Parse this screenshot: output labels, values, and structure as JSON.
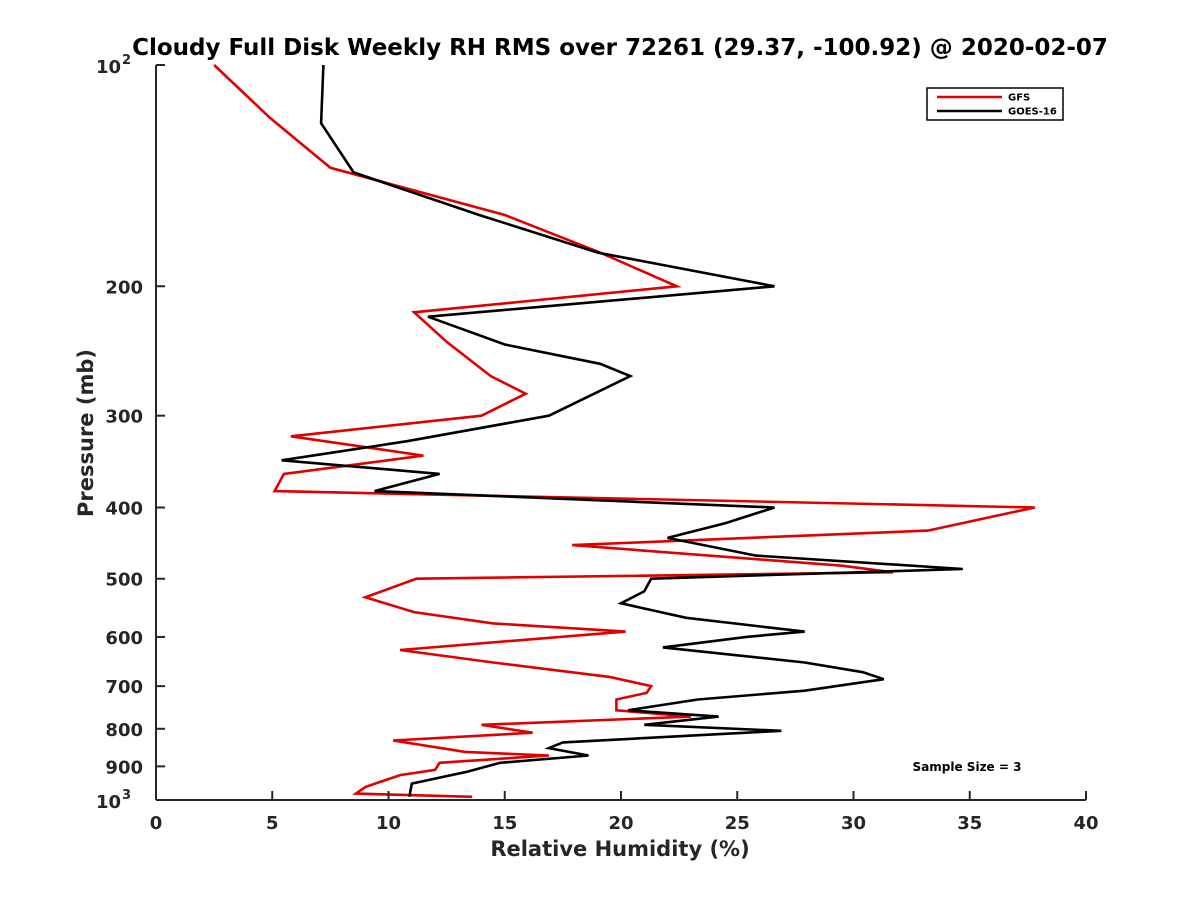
{
  "chart_data": {
    "type": "line",
    "title": "Cloudy Full Disk Weekly RH RMS over 72261 (29.37, -100.92) @ 2020-02-07",
    "xlabel": "Relative Humidity (%)",
    "ylabel": "Pressure (mb)",
    "xlim": [
      0,
      40
    ],
    "ylim": [
      100,
      1000
    ],
    "y_scale": "log",
    "y_reversed": true,
    "grid": false,
    "legend_position": "top-right",
    "x_ticks": [
      0,
      5,
      10,
      15,
      20,
      25,
      30,
      35,
      40
    ],
    "x_tick_labels": [
      "0",
      "5",
      "10",
      "15",
      "20",
      "25",
      "30",
      "35",
      "40"
    ],
    "y_ticks": [
      {
        "value": 100,
        "base": "10",
        "exp": "2"
      },
      {
        "value": 200,
        "label": "200"
      },
      {
        "value": 300,
        "label": "300"
      },
      {
        "value": 400,
        "label": "400"
      },
      {
        "value": 500,
        "label": "500"
      },
      {
        "value": 600,
        "label": "600"
      },
      {
        "value": 700,
        "label": "700"
      },
      {
        "value": 800,
        "label": "800"
      },
      {
        "value": 900,
        "label": "900"
      },
      {
        "value": 1000,
        "base": "10",
        "exp": "3"
      }
    ],
    "annotation": "Sample Size = 3",
    "series": [
      {
        "name": "GFS",
        "color": "#e00000",
        "points": [
          [
            2.5,
            100
          ],
          [
            4.9,
            118
          ],
          [
            7.5,
            138
          ],
          [
            15,
            160
          ],
          [
            19.1,
            180
          ],
          [
            22.4,
            200
          ],
          [
            11.1,
            217
          ],
          [
            12.5,
            238
          ],
          [
            14.4,
            265
          ],
          [
            15.9,
            280
          ],
          [
            14.0,
            300
          ],
          [
            5.8,
            320
          ],
          [
            11.5,
            340
          ],
          [
            5.5,
            360
          ],
          [
            5.1,
            380
          ],
          [
            37.8,
            400
          ],
          [
            33.2,
            430
          ],
          [
            17.9,
            450
          ],
          [
            29.5,
            480
          ],
          [
            31.7,
            490
          ],
          [
            11.2,
            500
          ],
          [
            9.0,
            530
          ],
          [
            11.1,
            555
          ],
          [
            14.5,
            575
          ],
          [
            20.2,
            590
          ],
          [
            10.5,
            625
          ],
          [
            14.5,
            650
          ],
          [
            19.5,
            680
          ],
          [
            21.3,
            700
          ],
          [
            21.1,
            715
          ],
          [
            19.8,
            730
          ],
          [
            19.8,
            755
          ],
          [
            23.0,
            770
          ],
          [
            14.0,
            790
          ],
          [
            16.2,
            810
          ],
          [
            10.2,
            830
          ],
          [
            13.3,
            860
          ],
          [
            16.9,
            870
          ],
          [
            12.2,
            890
          ],
          [
            12.0,
            910
          ],
          [
            10.5,
            925
          ],
          [
            9.0,
            960
          ],
          [
            8.6,
            980
          ],
          [
            13.6,
            990
          ]
        ]
      },
      {
        "name": "GOES-16",
        "color": "#000000",
        "points": [
          [
            7.2,
            100
          ],
          [
            7.1,
            120
          ],
          [
            8.5,
            140
          ],
          [
            13.9,
            160
          ],
          [
            19,
            180
          ],
          [
            26.6,
            200
          ],
          [
            11.7,
            220
          ],
          [
            15.0,
            240
          ],
          [
            19.1,
            255
          ],
          [
            20.4,
            265
          ],
          [
            16.9,
            300
          ],
          [
            10.8,
            325
          ],
          [
            5.4,
            345
          ],
          [
            12.2,
            360
          ],
          [
            9.4,
            380
          ],
          [
            26.6,
            400
          ],
          [
            24.5,
            420
          ],
          [
            22.0,
            440
          ],
          [
            25.8,
            465
          ],
          [
            34.7,
            485
          ],
          [
            21.3,
            500
          ],
          [
            21.0,
            520
          ],
          [
            20.0,
            540
          ],
          [
            22.8,
            565
          ],
          [
            27.9,
            590
          ],
          [
            25.4,
            600
          ],
          [
            21.8,
            620
          ],
          [
            27.9,
            650
          ],
          [
            30.4,
            670
          ],
          [
            31.3,
            685
          ],
          [
            27.9,
            710
          ],
          [
            23.3,
            730
          ],
          [
            20.3,
            755
          ],
          [
            24.2,
            770
          ],
          [
            21.0,
            790
          ],
          [
            26.9,
            805
          ],
          [
            17.5,
            835
          ],
          [
            16.9,
            850
          ],
          [
            18.6,
            870
          ],
          [
            14.8,
            890
          ],
          [
            13.4,
            915
          ],
          [
            11.0,
            950
          ],
          [
            10.9,
            990
          ]
        ]
      }
    ]
  }
}
